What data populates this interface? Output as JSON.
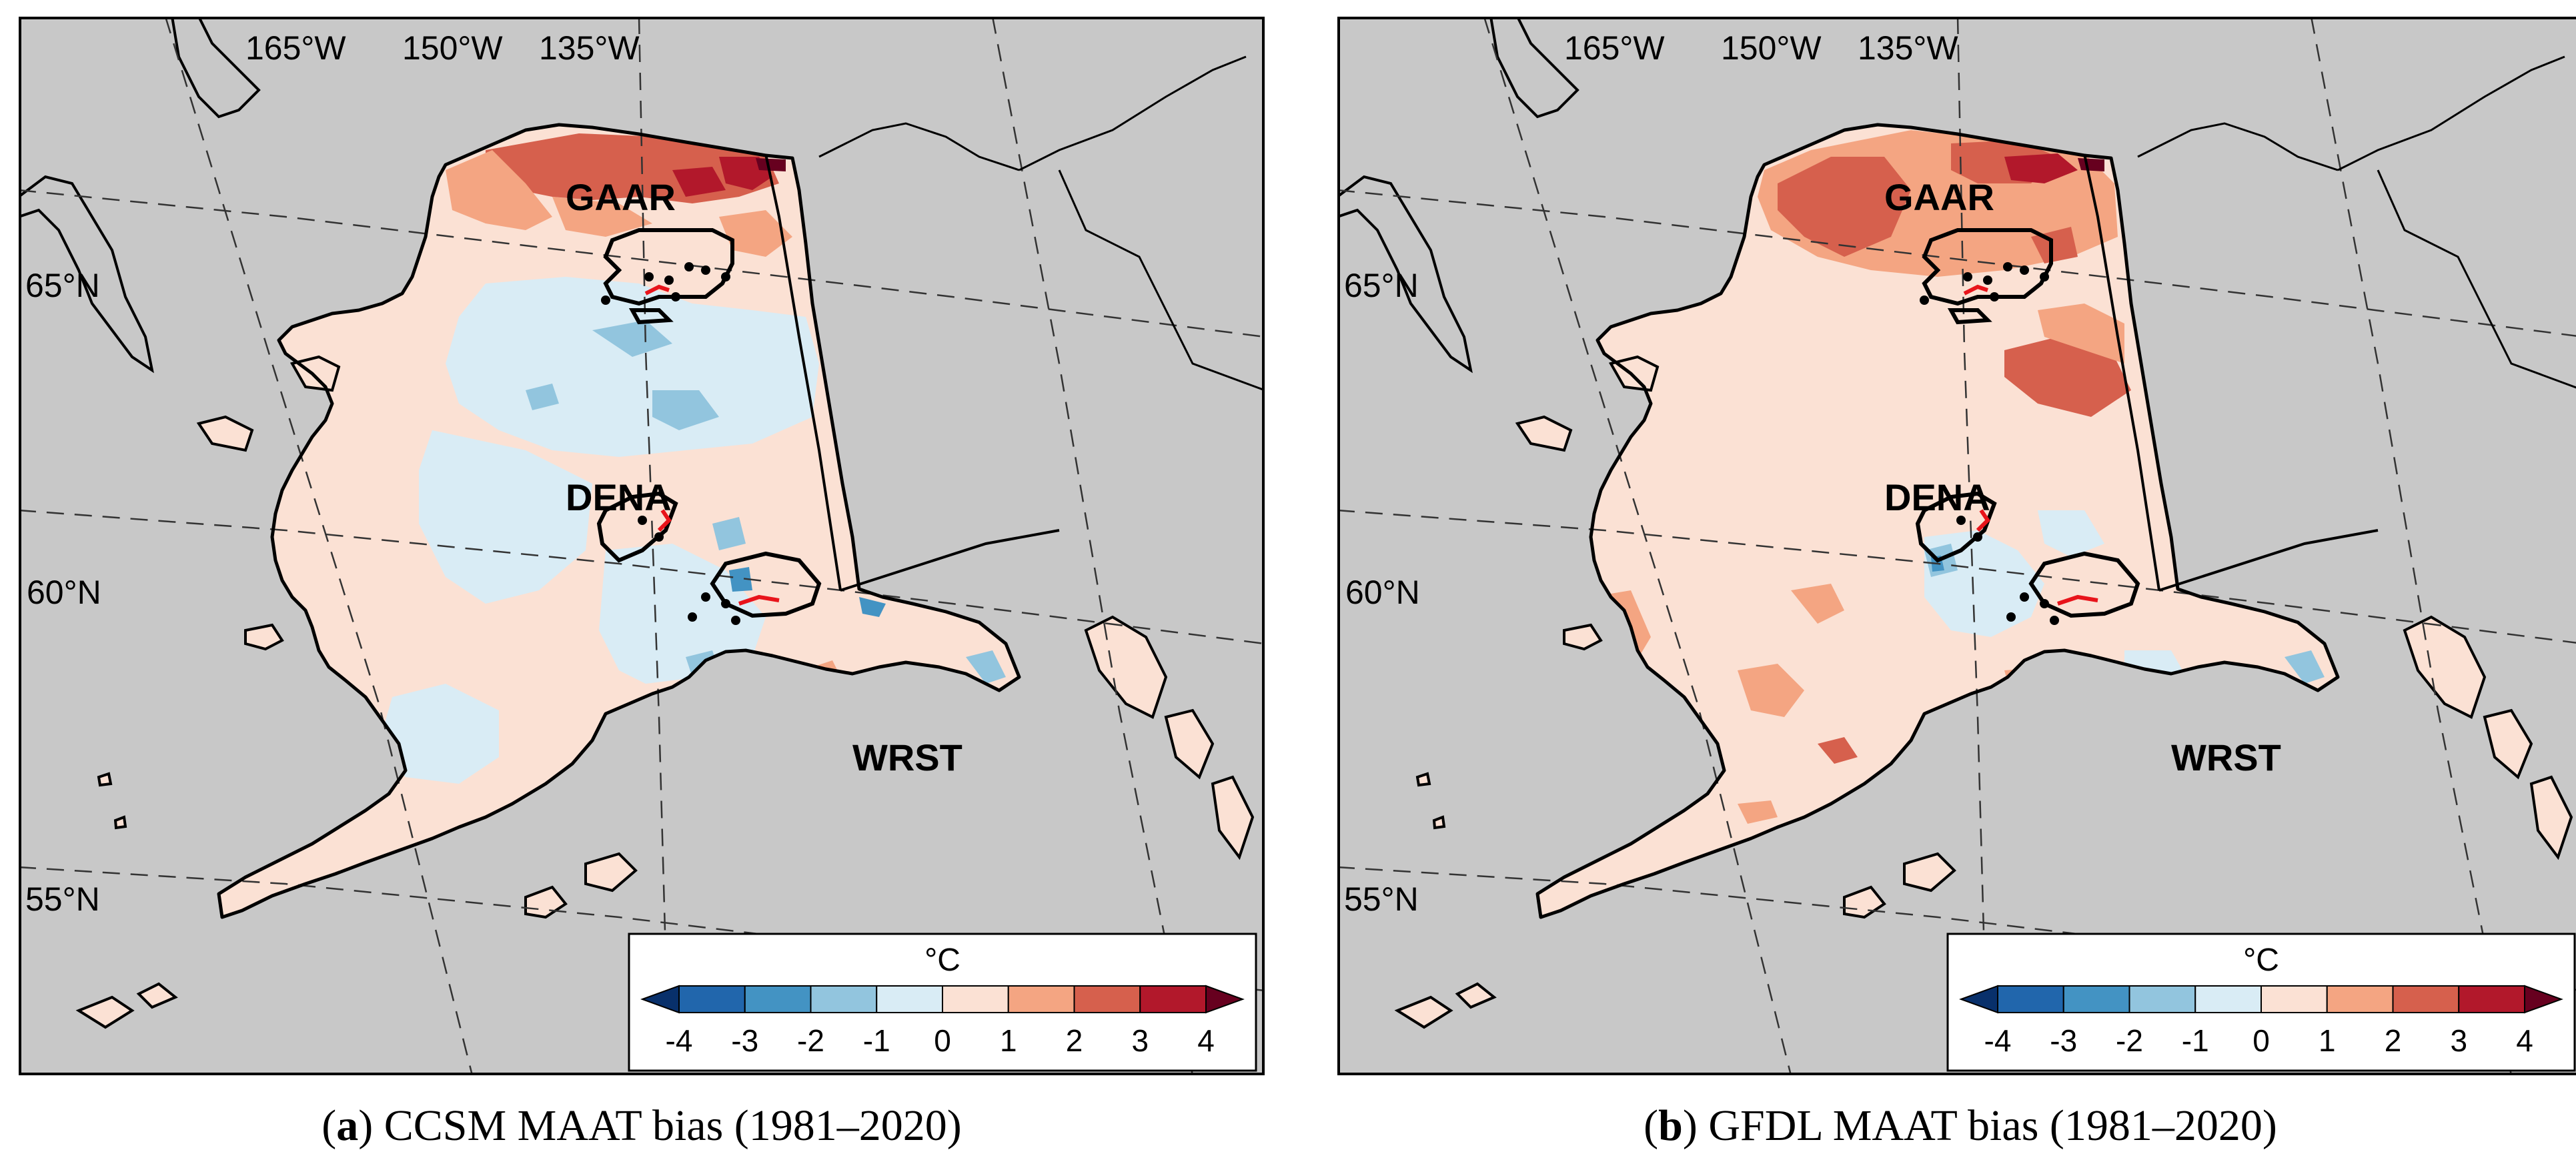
{
  "panels": [
    {
      "id": "a",
      "caption_letter": "a",
      "caption_text": "CCSM MAAT bias (1981–2020)",
      "scheme": "ccsm"
    },
    {
      "id": "b",
      "caption_letter": "b",
      "caption_text": "GFDL MAAT bias (1981–2020)",
      "scheme": "gfdl"
    }
  ],
  "lon_labels": [
    "165°W",
    "150°W",
    "135°W"
  ],
  "lat_labels": [
    "65°N",
    "60°N",
    "55°N"
  ],
  "parks": [
    "GAAR",
    "DENA",
    "WRST"
  ],
  "colorbar": {
    "unit": "°C",
    "ticks": [
      "-4",
      "-3",
      "-2",
      "-1",
      "0",
      "1",
      "2",
      "3",
      "4"
    ],
    "colors": [
      "#08306b",
      "#2166ac",
      "#4393c3",
      "#92c5de",
      "#d9ecf5",
      "#fbe1d4",
      "#f4a582",
      "#d6604d",
      "#b2182b",
      "#67001f"
    ]
  },
  "colors": {
    "ocean": "#c8c8c8",
    "land_base": "#fbe1d4",
    "coast": "#000000",
    "route": "#e8141b"
  }
}
